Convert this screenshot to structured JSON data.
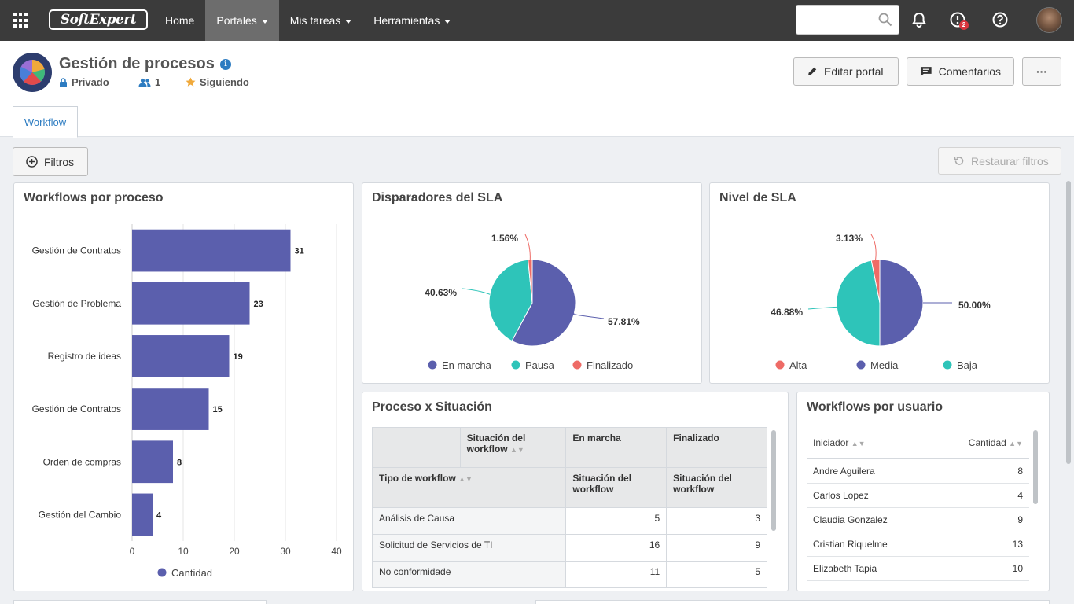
{
  "topbar": {
    "logo": "SoftExpert",
    "nav": [
      {
        "label": "Home",
        "dropdown": false,
        "active": false
      },
      {
        "label": "Portales",
        "dropdown": true,
        "active": true
      },
      {
        "label": "Mis tareas",
        "dropdown": true,
        "active": false
      },
      {
        "label": "Herramientas",
        "dropdown": true,
        "active": false
      }
    ],
    "search_placeholder": "",
    "notification_badge": "2"
  },
  "portal": {
    "title": "Gestión de procesos",
    "privacy": "Privado",
    "members": "1",
    "following": "Siguiendo",
    "edit_label": "Editar portal",
    "comments_label": "Comentarios",
    "more_label": "···",
    "tab": "Workflow"
  },
  "filters": {
    "filter_label": "Filtros",
    "restore_label": "Restaurar filtros"
  },
  "colors": {
    "purple": "#5b5fad",
    "teal": "#2ec4b9",
    "coral": "#ee6b66"
  },
  "chart_data": [
    {
      "id": "workflows_por_proceso",
      "type": "bar",
      "orientation": "horizontal",
      "title": "Workflows por proceso",
      "categories": [
        "Gestión de Contratos",
        "Gestión de Problema",
        "Registro de ideas",
        "Gestión de Contratos",
        "Orden de compras",
        "Gestión del Cambio"
      ],
      "series": [
        {
          "name": "Cantidad",
          "values": [
            31,
            23,
            19,
            15,
            8,
            4
          ]
        }
      ],
      "xlim": [
        0,
        40
      ],
      "xticks": [
        0,
        10,
        20,
        30,
        40
      ],
      "grid": true,
      "legend": "bottom"
    },
    {
      "id": "disparadores_sla",
      "type": "pie",
      "title": "Disparadores del SLA",
      "labels": [
        "En marcha",
        "Pausa",
        "Finalizado"
      ],
      "values": [
        57.81,
        40.63,
        1.56
      ],
      "value_labels": [
        "57.81%",
        "40.63%",
        "1.56%"
      ],
      "legend": "bottom"
    },
    {
      "id": "nivel_sla",
      "type": "pie",
      "title": "Nivel de SLA",
      "labels": [
        "Media",
        "Baja",
        "Alta"
      ],
      "values": [
        50.0,
        46.88,
        3.13
      ],
      "value_labels": [
        "50.00%",
        "46.88%",
        "3.13%"
      ],
      "legend_order": [
        "Alta",
        "Media",
        "Baja"
      ],
      "legend": "bottom"
    }
  ],
  "proceso_situacion": {
    "title": "Proceso x Situación",
    "header_situacion": "Situación del workflow",
    "header_en_marcha": "En marcha",
    "header_finalizado": "Finalizado",
    "header_tipo": "Tipo de workflow",
    "sub_en_marcha": "Situación del workflow",
    "sub_finalizado": "Situación del workflow",
    "rows": [
      {
        "tipo": "Análisis de Causa",
        "en_marcha": "5",
        "finalizado": "3"
      },
      {
        "tipo": "Solicitud de Servicios de TI",
        "en_marcha": "16",
        "finalizado": "9"
      },
      {
        "tipo": "No conformidade",
        "en_marcha": "11",
        "finalizado": "5"
      }
    ]
  },
  "workflows_usuario": {
    "title": "Workflows por usuario",
    "col_iniciador": "Iniciador",
    "col_cantidad": "Cantidad",
    "rows": [
      {
        "name": "Andre Aguilera",
        "count": "8"
      },
      {
        "name": "Carlos Lopez",
        "count": "4"
      },
      {
        "name": "Claudia Gonzalez",
        "count": "9"
      },
      {
        "name": "Cristian Riquelme",
        "count": "13"
      },
      {
        "name": "Elizabeth Tapia",
        "count": "10"
      }
    ]
  }
}
